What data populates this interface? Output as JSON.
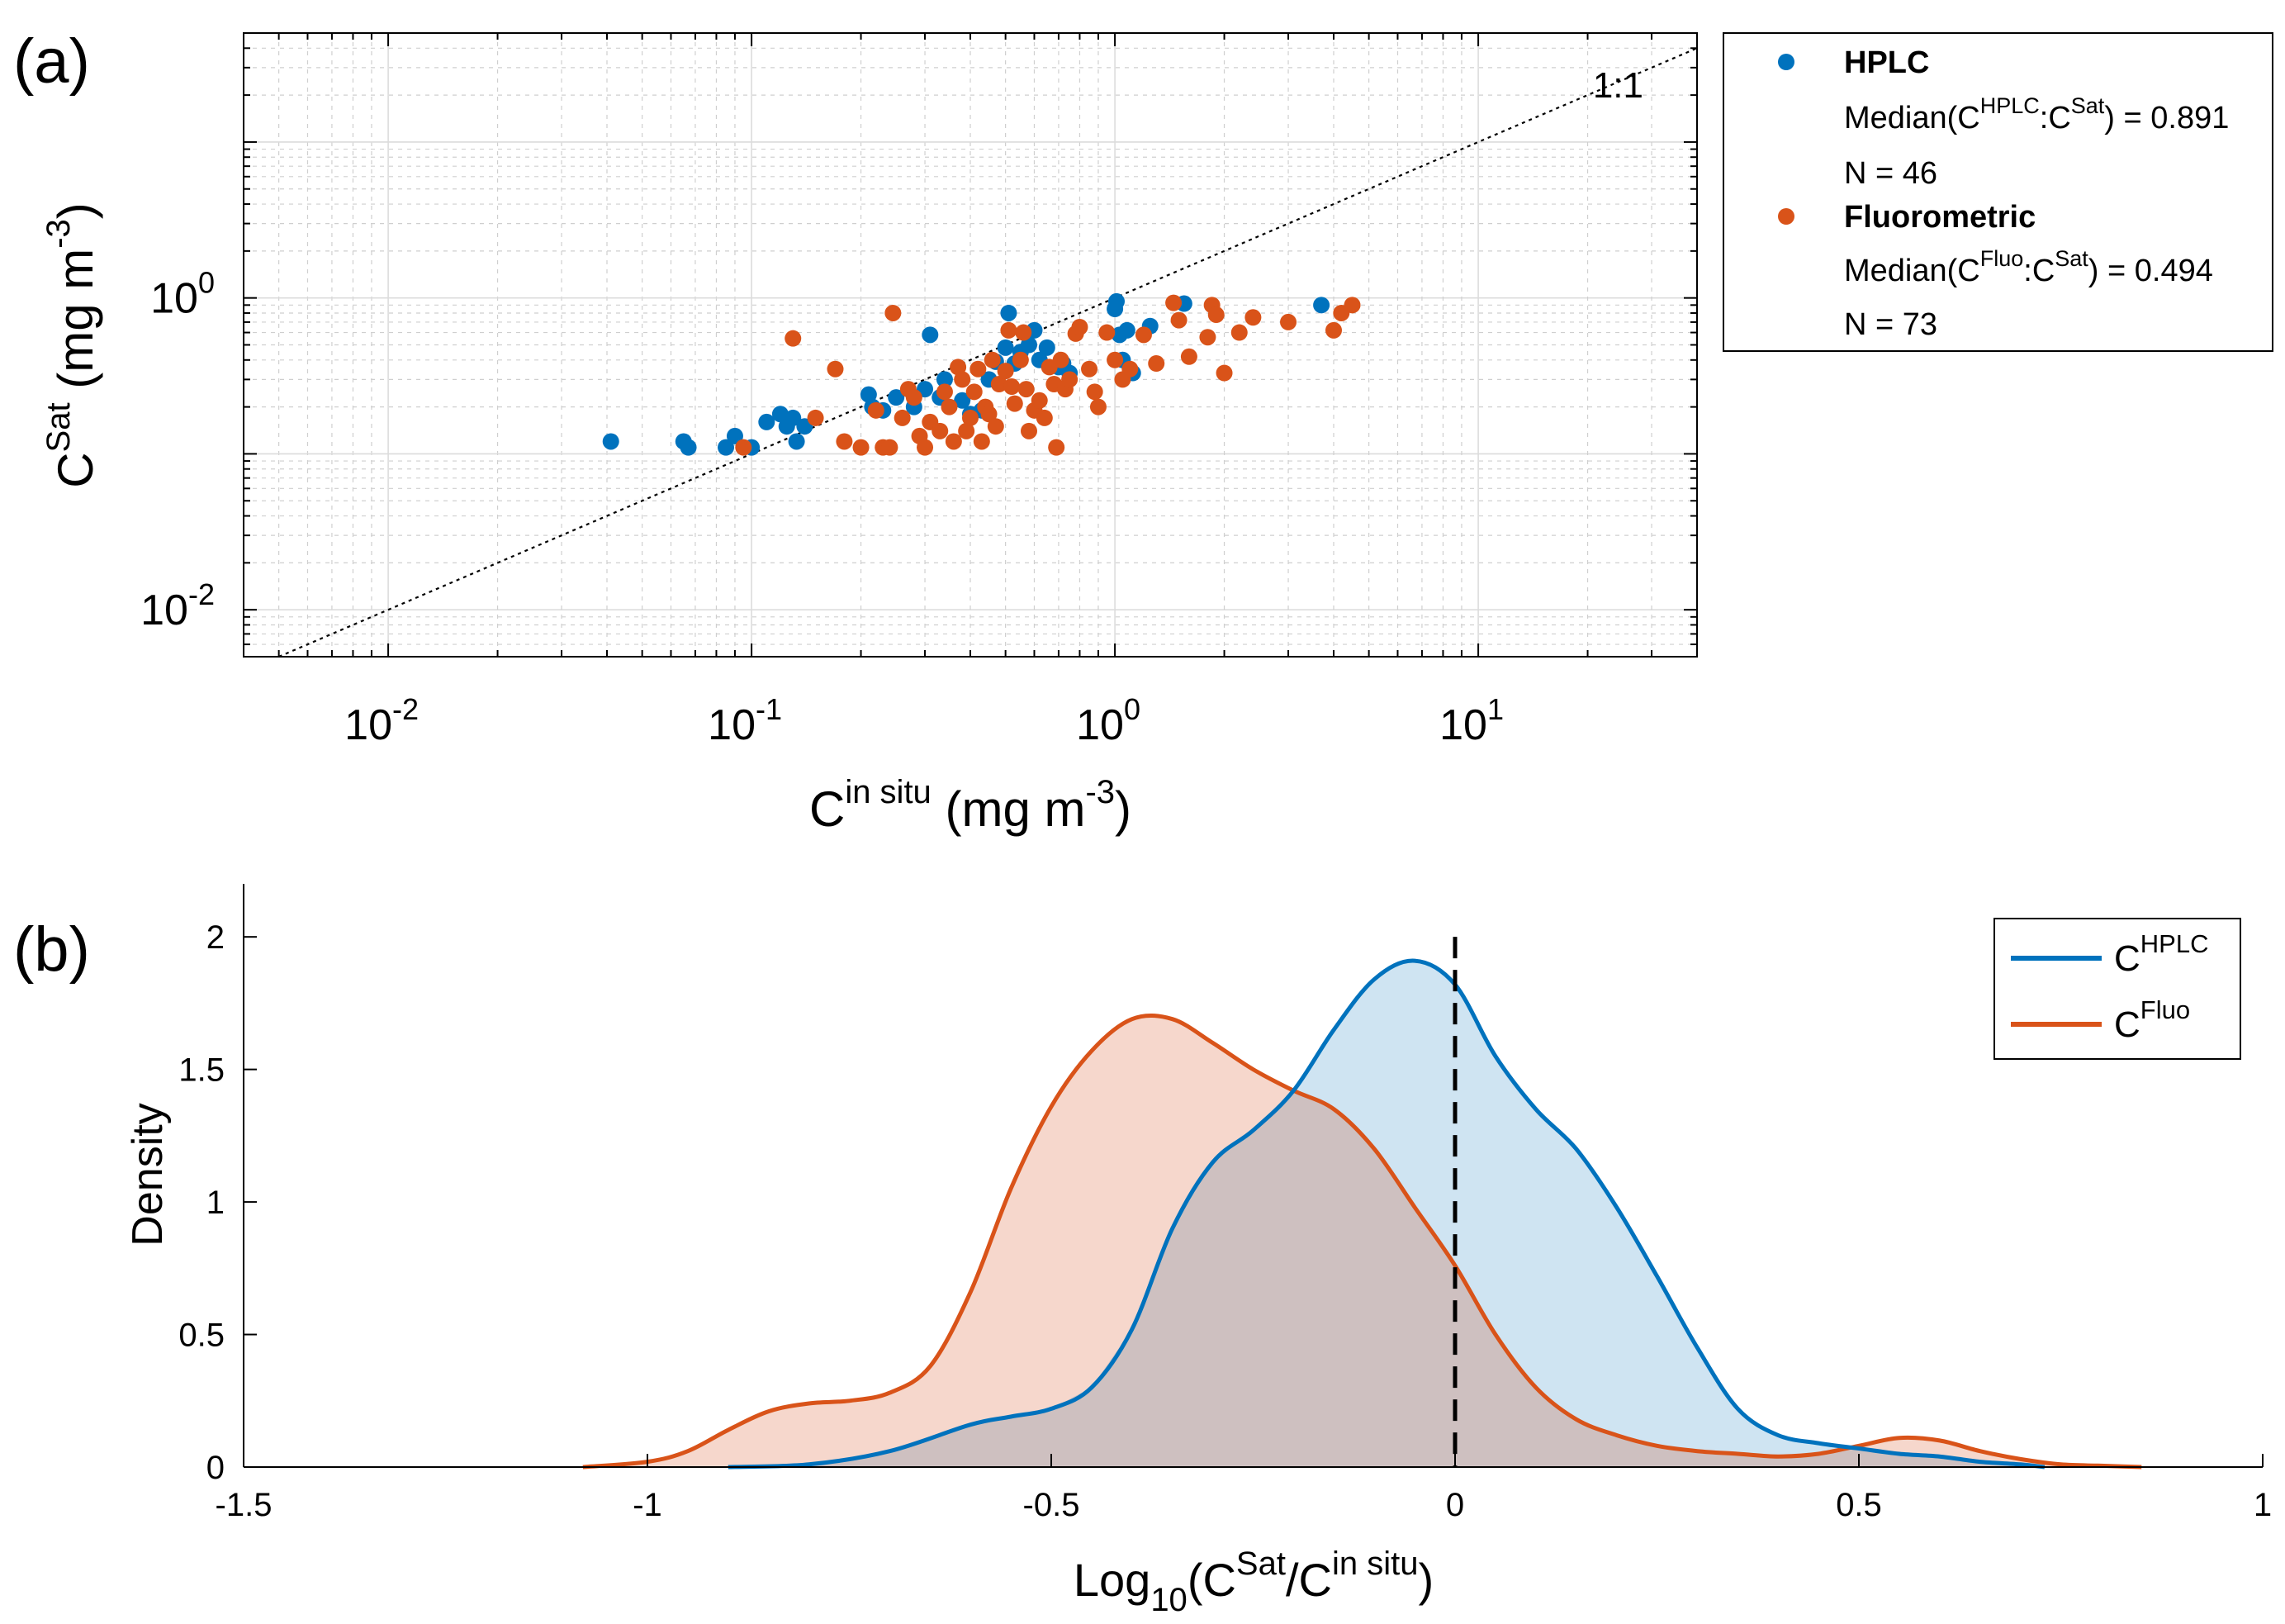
{
  "chart_data": [
    {
      "panel": "(a)",
      "type": "scatter",
      "xscale": "log",
      "yscale": "log",
      "xlim": [
        0.004,
        40
      ],
      "ylim": [
        0.005,
        50
      ],
      "grid": true,
      "minor_grid": true,
      "xlabel": {
        "base": "C",
        "sup": "in situ",
        "unit": " (mg m",
        "unit_sup": "-3",
        "close": ")"
      },
      "ylabel": {
        "base": "C",
        "sup": "Sat",
        "unit": " (mg m",
        "unit_sup": "-3",
        "close": ")"
      },
      "x_ticks": [
        {
          "value": 0.01,
          "base": "10",
          "exp": "-2"
        },
        {
          "value": 0.1,
          "base": "10",
          "exp": "-1"
        },
        {
          "value": 1,
          "base": "10",
          "exp": "0"
        },
        {
          "value": 10,
          "base": "10",
          "exp": "1"
        }
      ],
      "y_ticks": [
        {
          "value": 0.01,
          "base": "10",
          "exp": "-2"
        },
        {
          "value": 1,
          "base": "10",
          "exp": "0"
        }
      ],
      "reference_line": {
        "label": "1:1",
        "slope": 1
      },
      "legend": {
        "position": "outside-right",
        "entries": [
          {
            "name": "HPLC",
            "line1": "Median(C",
            "sup1": "HPLC",
            "mid": ":C",
            "sup2": "Sat",
            "line1_end": ") = 0.891",
            "n": "N = 46"
          },
          {
            "name": "Fluorometric",
            "line1": "Median(C",
            "sup1": "Fluo",
            "mid": ":C",
            "sup2": "Sat",
            "line1_end": ") = 0.494",
            "n": "N = 73"
          }
        ]
      },
      "series": [
        {
          "name": "HPLC",
          "color": "#0072BD",
          "points": [
            [
              0.041,
              0.12
            ],
            [
              0.065,
              0.12
            ],
            [
              0.067,
              0.11
            ],
            [
              0.085,
              0.11
            ],
            [
              0.09,
              0.13
            ],
            [
              0.1,
              0.11
            ],
            [
              0.11,
              0.16
            ],
            [
              0.12,
              0.18
            ],
            [
              0.125,
              0.15
            ],
            [
              0.13,
              0.17
            ],
            [
              0.133,
              0.12
            ],
            [
              0.14,
              0.15
            ],
            [
              0.21,
              0.24
            ],
            [
              0.215,
              0.2
            ],
            [
              0.23,
              0.19
            ],
            [
              0.25,
              0.23
            ],
            [
              0.28,
              0.2
            ],
            [
              0.3,
              0.26
            ],
            [
              0.31,
              0.58
            ],
            [
              0.33,
              0.23
            ],
            [
              0.34,
              0.3
            ],
            [
              0.38,
              0.22
            ],
            [
              0.4,
              0.18
            ],
            [
              0.43,
              0.19
            ],
            [
              0.45,
              0.3
            ],
            [
              0.47,
              0.39
            ],
            [
              0.5,
              0.48
            ],
            [
              0.51,
              0.8
            ],
            [
              0.53,
              0.38
            ],
            [
              0.55,
              0.45
            ],
            [
              0.58,
              0.5
            ],
            [
              0.6,
              0.62
            ],
            [
              0.62,
              0.4
            ],
            [
              0.65,
              0.48
            ],
            [
              0.7,
              0.36
            ],
            [
              0.72,
              0.38
            ],
            [
              0.75,
              0.33
            ],
            [
              1.0,
              0.85
            ],
            [
              1.01,
              0.95
            ],
            [
              1.03,
              0.58
            ],
            [
              1.05,
              0.4
            ],
            [
              1.08,
              0.62
            ],
            [
              1.12,
              0.33
            ],
            [
              1.25,
              0.66
            ],
            [
              1.55,
              0.92
            ],
            [
              3.7,
              0.9
            ]
          ]
        },
        {
          "name": "Fluorometric",
          "color": "#D95319",
          "points": [
            [
              0.095,
              0.11
            ],
            [
              0.13,
              0.55
            ],
            [
              0.15,
              0.17
            ],
            [
              0.17,
              0.35
            ],
            [
              0.18,
              0.12
            ],
            [
              0.2,
              0.11
            ],
            [
              0.22,
              0.19
            ],
            [
              0.23,
              0.11
            ],
            [
              0.24,
              0.11
            ],
            [
              0.245,
              0.8
            ],
            [
              0.26,
              0.17
            ],
            [
              0.27,
              0.26
            ],
            [
              0.28,
              0.23
            ],
            [
              0.29,
              0.13
            ],
            [
              0.3,
              0.11
            ],
            [
              0.31,
              0.16
            ],
            [
              0.33,
              0.14
            ],
            [
              0.34,
              0.25
            ],
            [
              0.35,
              0.2
            ],
            [
              0.36,
              0.12
            ],
            [
              0.37,
              0.36
            ],
            [
              0.38,
              0.3
            ],
            [
              0.39,
              0.14
            ],
            [
              0.4,
              0.17
            ],
            [
              0.41,
              0.25
            ],
            [
              0.42,
              0.35
            ],
            [
              0.43,
              0.12
            ],
            [
              0.44,
              0.2
            ],
            [
              0.45,
              0.18
            ],
            [
              0.46,
              0.4
            ],
            [
              0.47,
              0.15
            ],
            [
              0.48,
              0.28
            ],
            [
              0.5,
              0.34
            ],
            [
              0.51,
              0.62
            ],
            [
              0.52,
              0.27
            ],
            [
              0.53,
              0.21
            ],
            [
              0.55,
              0.4
            ],
            [
              0.56,
              0.6
            ],
            [
              0.57,
              0.26
            ],
            [
              0.58,
              0.14
            ],
            [
              0.6,
              0.19
            ],
            [
              0.62,
              0.22
            ],
            [
              0.64,
              0.17
            ],
            [
              0.66,
              0.36
            ],
            [
              0.68,
              0.28
            ],
            [
              0.69,
              0.11
            ],
            [
              0.71,
              0.4
            ],
            [
              0.73,
              0.26
            ],
            [
              0.75,
              0.3
            ],
            [
              0.78,
              0.59
            ],
            [
              0.8,
              0.65
            ],
            [
              0.85,
              0.35
            ],
            [
              0.88,
              0.25
            ],
            [
              0.9,
              0.2
            ],
            [
              0.95,
              0.6
            ],
            [
              1.0,
              0.4
            ],
            [
              1.05,
              0.3
            ],
            [
              1.1,
              0.35
            ],
            [
              1.2,
              0.58
            ],
            [
              1.3,
              0.38
            ],
            [
              1.45,
              0.93
            ],
            [
              1.5,
              0.72
            ],
            [
              1.6,
              0.42
            ],
            [
              1.8,
              0.56
            ],
            [
              1.85,
              0.9
            ],
            [
              1.9,
              0.78
            ],
            [
              2.0,
              0.33
            ],
            [
              2.2,
              0.6
            ],
            [
              2.4,
              0.75
            ],
            [
              3.0,
              0.7
            ],
            [
              4.0,
              0.62
            ],
            [
              4.2,
              0.8
            ],
            [
              4.5,
              0.9
            ]
          ]
        }
      ]
    },
    {
      "panel": "(b)",
      "type": "area",
      "xlim": [
        -1.5,
        1
      ],
      "ylim": [
        0,
        2.2
      ],
      "grid": false,
      "ylabel": "Density",
      "xlabel": {
        "base": "Log",
        "sub": "10",
        "open": "(C",
        "sup1": "Sat",
        "mid": "/C",
        "sup2": "in situ",
        "close": ")"
      },
      "x_ticks": [
        "-1.5",
        "-1",
        "-0.5",
        "0",
        "0.5",
        "1"
      ],
      "y_ticks": [
        "0",
        "0.5",
        "1",
        "1.5",
        "2"
      ],
      "reference_line": {
        "x": 0,
        "style": "dashed"
      },
      "legend": {
        "position": "top-right"
      },
      "series": [
        {
          "name": "C",
          "name_sup": "HPLC",
          "color": "#0072BD",
          "fill": "#CFE4F2",
          "x": [
            -0.9,
            -0.8,
            -0.7,
            -0.6,
            -0.55,
            -0.5,
            -0.45,
            -0.4,
            -0.35,
            -0.3,
            -0.25,
            -0.2,
            -0.15,
            -0.1,
            -0.05,
            0.0,
            0.05,
            0.1,
            0.15,
            0.2,
            0.25,
            0.3,
            0.35,
            0.4,
            0.45,
            0.5,
            0.55,
            0.6,
            0.65,
            0.7,
            0.73
          ],
          "y": [
            0.0,
            0.01,
            0.06,
            0.16,
            0.19,
            0.22,
            0.3,
            0.52,
            0.9,
            1.15,
            1.27,
            1.42,
            1.65,
            1.84,
            1.91,
            1.82,
            1.55,
            1.35,
            1.2,
            0.98,
            0.72,
            0.45,
            0.22,
            0.12,
            0.09,
            0.07,
            0.05,
            0.04,
            0.02,
            0.01,
            0.0
          ]
        },
        {
          "name": "C",
          "name_sup": "Fluo",
          "color": "#D95319",
          "fill": "#F6D7CC",
          "x": [
            -1.08,
            -1.0,
            -0.95,
            -0.9,
            -0.85,
            -0.8,
            -0.75,
            -0.7,
            -0.65,
            -0.6,
            -0.55,
            -0.5,
            -0.45,
            -0.4,
            -0.35,
            -0.3,
            -0.25,
            -0.2,
            -0.15,
            -0.1,
            -0.05,
            0.0,
            0.05,
            0.1,
            0.15,
            0.2,
            0.25,
            0.3,
            0.35,
            0.4,
            0.45,
            0.5,
            0.55,
            0.6,
            0.65,
            0.7,
            0.75,
            0.8,
            0.85
          ],
          "y": [
            0.0,
            0.02,
            0.06,
            0.14,
            0.21,
            0.24,
            0.25,
            0.28,
            0.38,
            0.66,
            1.05,
            1.36,
            1.57,
            1.69,
            1.69,
            1.6,
            1.5,
            1.42,
            1.35,
            1.2,
            0.98,
            0.76,
            0.5,
            0.3,
            0.18,
            0.12,
            0.08,
            0.06,
            0.05,
            0.04,
            0.05,
            0.08,
            0.11,
            0.1,
            0.06,
            0.03,
            0.01,
            0.005,
            0.0
          ]
        }
      ]
    }
  ],
  "panel_labels": {
    "a": "(a)",
    "b": "(b)"
  },
  "colors": {
    "hplc": "#0072BD",
    "fluo": "#D95319",
    "overlap": "#CEC0C0"
  }
}
